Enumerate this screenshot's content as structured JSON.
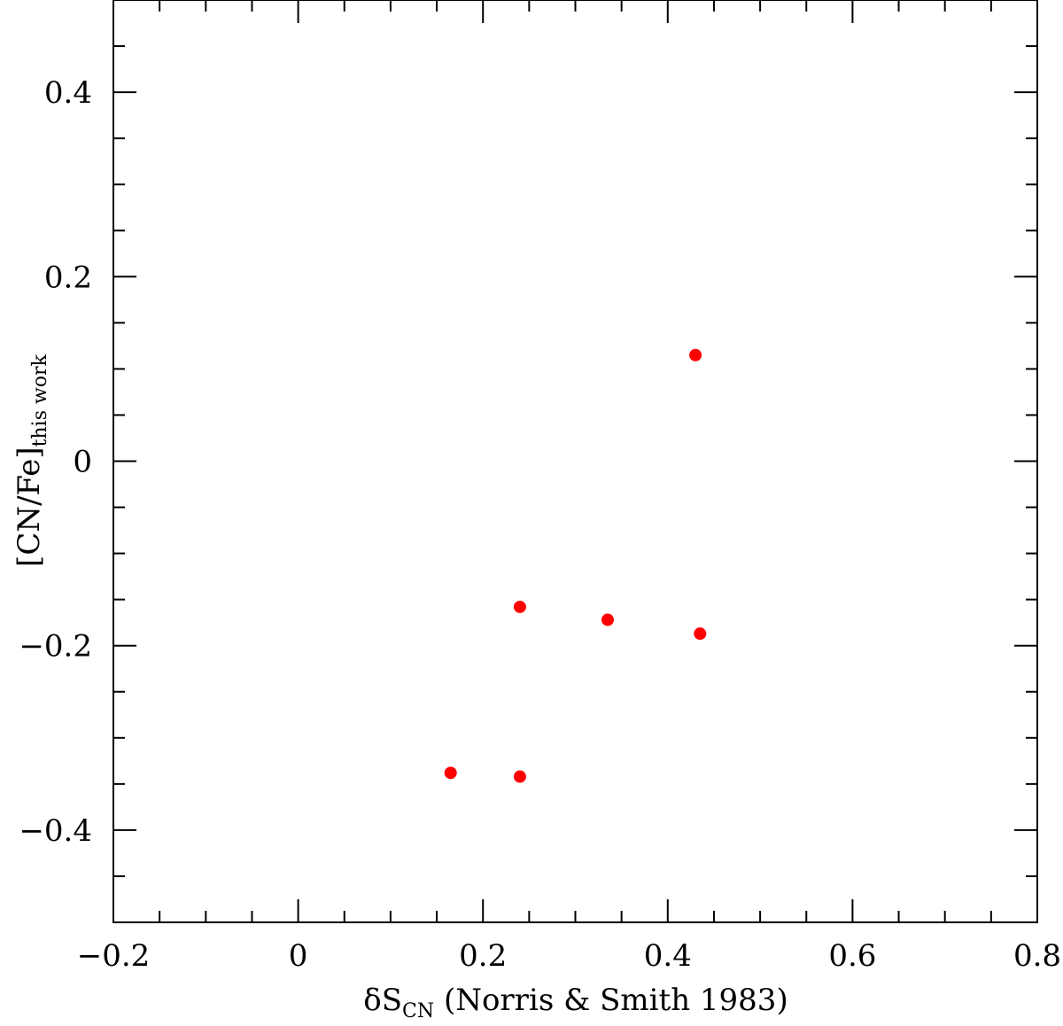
{
  "chart_data": {
    "type": "scatter",
    "title": "",
    "xlabel": {
      "prefix": "δS",
      "subscript": "CN",
      "suffix": " (Norris & Smith 1983)"
    },
    "ylabel": {
      "main": "[CN/Fe]",
      "subscript": "this work"
    },
    "xlim": [
      -0.2,
      0.8
    ],
    "ylim": [
      -0.5,
      0.5
    ],
    "x_major_ticks": [
      -0.2,
      0,
      0.2,
      0.4,
      0.6,
      0.8
    ],
    "x_tick_labels": [
      "−0.2",
      "0",
      "0.2",
      "0.4",
      "0.6",
      "0.8"
    ],
    "x_minor_step": 0.05,
    "y_major_ticks": [
      -0.4,
      -0.2,
      0,
      0.2,
      0.4
    ],
    "y_tick_labels": [
      "−0.4",
      "−0.2",
      "0",
      "0.2",
      "0.4"
    ],
    "y_minor_step": 0.05,
    "grid": false,
    "marker_color": "#ff0000",
    "series": [
      {
        "points": [
          {
            "x": 0.43,
            "y": 0.115
          },
          {
            "x": 0.24,
            "y": -0.158
          },
          {
            "x": 0.335,
            "y": -0.172
          },
          {
            "x": 0.435,
            "y": -0.187
          },
          {
            "x": 0.165,
            "y": -0.338
          },
          {
            "x": 0.24,
            "y": -0.342
          }
        ]
      }
    ]
  }
}
